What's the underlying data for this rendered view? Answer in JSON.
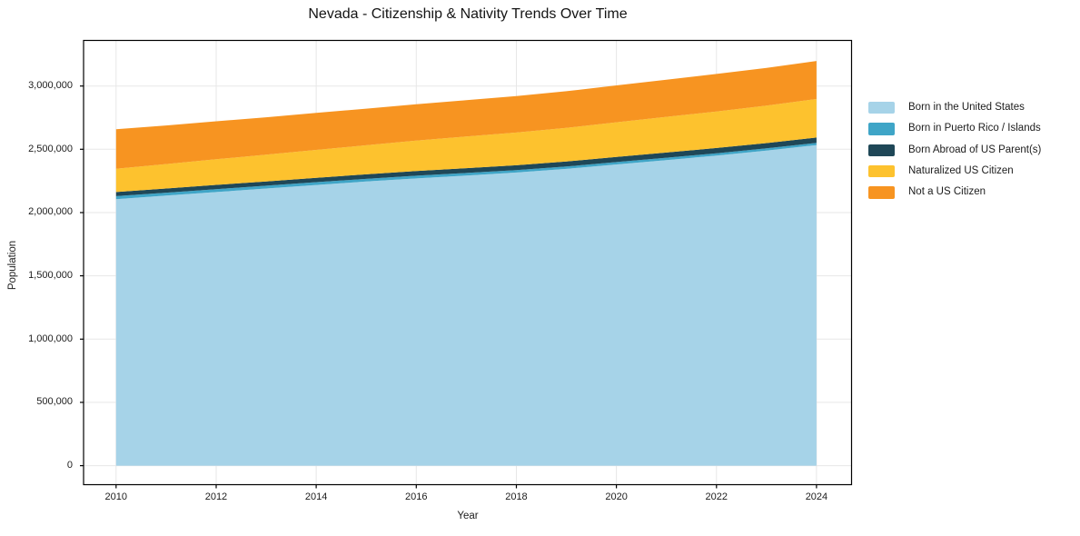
{
  "title": "Nevada - Citizenship & Nativity Trends Over Time",
  "chart_data": {
    "type": "area",
    "stacked": true,
    "title": "Nevada - Citizenship & Nativity Trends Over Time",
    "xlabel": "Year",
    "ylabel": "Population",
    "x": [
      2010,
      2011,
      2012,
      2013,
      2014,
      2015,
      2016,
      2017,
      2018,
      2019,
      2020,
      2021,
      2022,
      2023,
      2024
    ],
    "series": [
      {
        "name": "Born in the United States",
        "color": "#a6d3e8",
        "values": [
          2106000,
          2134000,
          2162000,
          2190000,
          2218000,
          2245000,
          2270000,
          2293000,
          2316000,
          2345000,
          2380000,
          2415000,
          2450000,
          2490000,
          2533000
        ]
      },
      {
        "name": "Born in Puerto Rico / Islands",
        "color": "#3fa5c7",
        "values": [
          24000,
          23000,
          23000,
          22000,
          22000,
          21000,
          21000,
          20000,
          20000,
          19000,
          19000,
          18000,
          18000,
          17000,
          17000
        ]
      },
      {
        "name": "Born Abroad of US Parent(s)",
        "color": "#1f4757",
        "values": [
          32000,
          33000,
          34000,
          34000,
          35000,
          36000,
          37000,
          38000,
          38000,
          39000,
          40000,
          41000,
          42000,
          42000,
          43000
        ]
      },
      {
        "name": "Naturalized US Citizen",
        "color": "#fdc22e",
        "values": [
          184000,
          193000,
          202000,
          211000,
          220000,
          230000,
          240000,
          250000,
          258000,
          266000,
          274000,
          282000,
          289000,
          296000,
          304000
        ]
      },
      {
        "name": "Not a US Citizen",
        "color": "#f79421",
        "values": [
          312000,
          305000,
          300000,
          296000,
          292000,
          289000,
          288000,
          287000,
          288000,
          290000,
          292000,
          294000,
          296000,
          298000,
          301000
        ]
      }
    ],
    "xticks": [
      2010,
      2012,
      2014,
      2016,
      2018,
      2020,
      2022,
      2024
    ],
    "yticks": [
      0,
      500000,
      1000000,
      1500000,
      2000000,
      2500000,
      3000000
    ],
    "xlim": [
      2009.35,
      2024.7
    ],
    "ylim": [
      -150000,
      3360000
    ],
    "grid": true,
    "legend_position": "right-outside",
    "grid_color": "#e7e7e7",
    "spine_color": "#000000"
  }
}
